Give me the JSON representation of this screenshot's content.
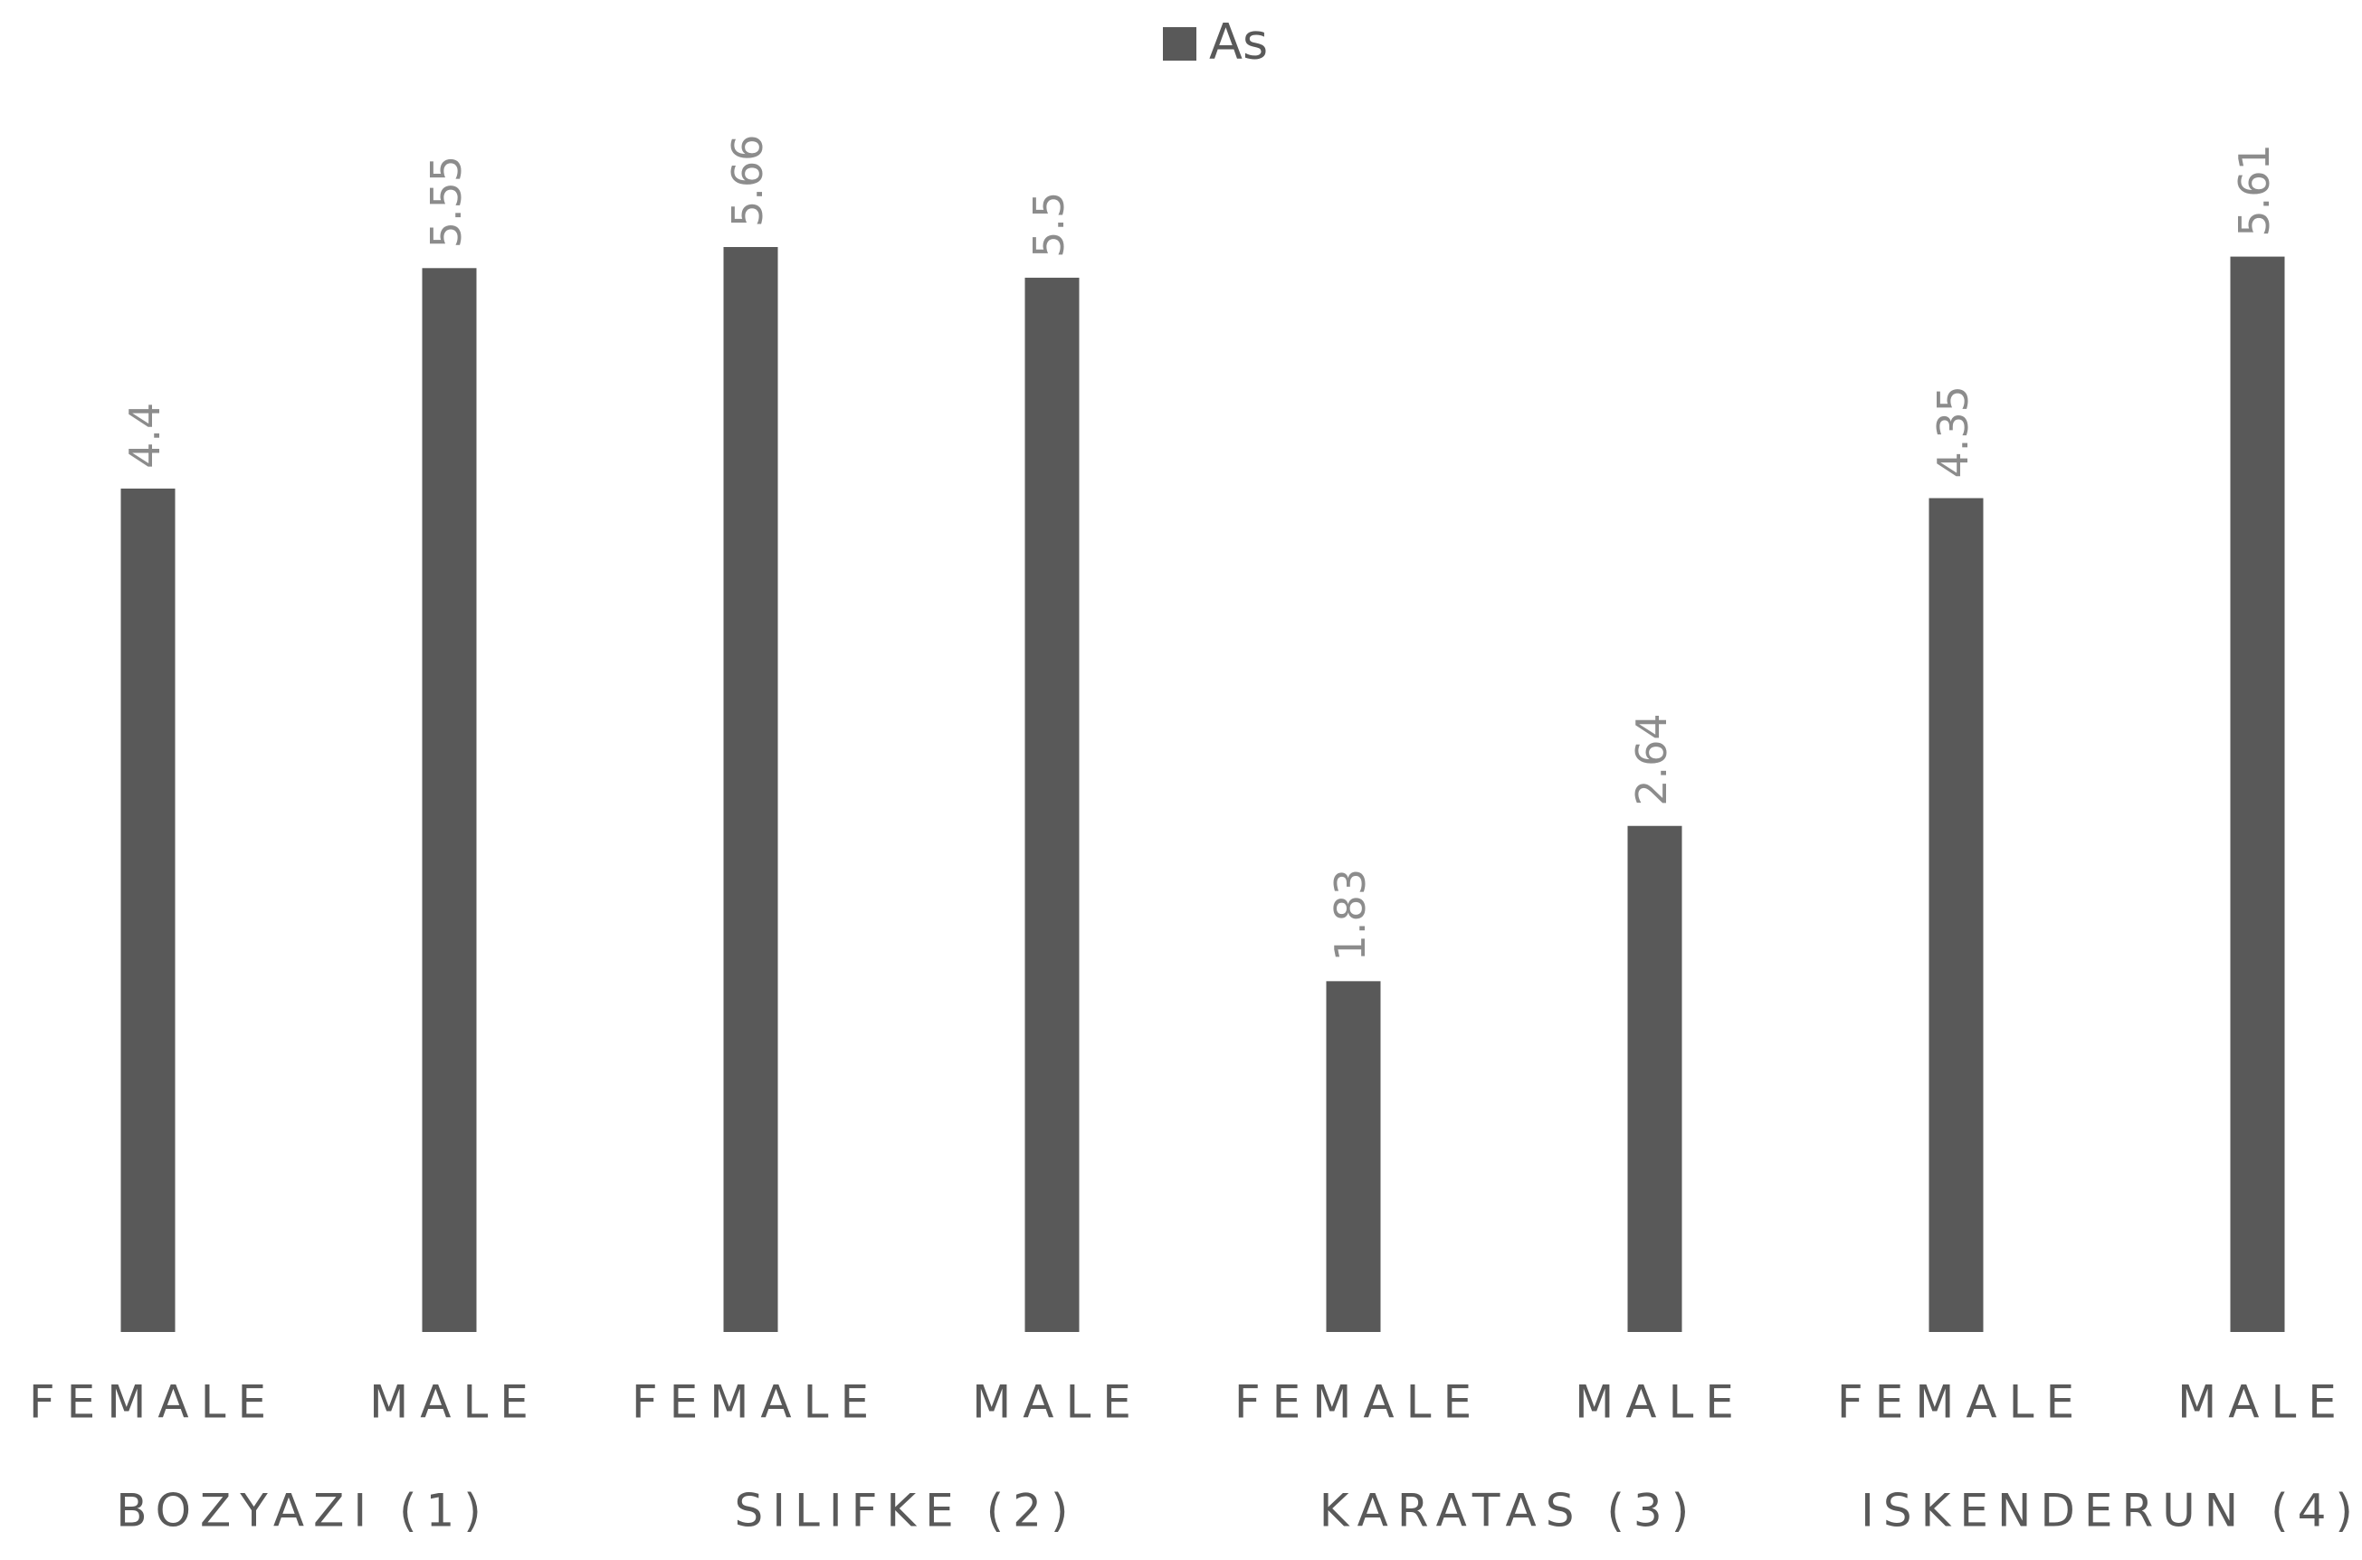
{
  "chart_data": {
    "type": "bar",
    "categories": [
      "FEMALE",
      "MALE",
      "FEMALE",
      "MALE",
      "FEMALE",
      "MALE",
      "FEMALE",
      "MALE"
    ],
    "groups": [
      "BOZYAZI (1)",
      "SILIFKE (2)",
      "KARATAS (3)",
      "ISKENDERUN (4)"
    ],
    "series": [
      {
        "name": "As",
        "color": "#595959",
        "values": [
          4.4,
          5.55,
          5.66,
          5.5,
          1.83,
          2.64,
          4.35,
          5.61
        ]
      }
    ],
    "legend": "top"
  }
}
